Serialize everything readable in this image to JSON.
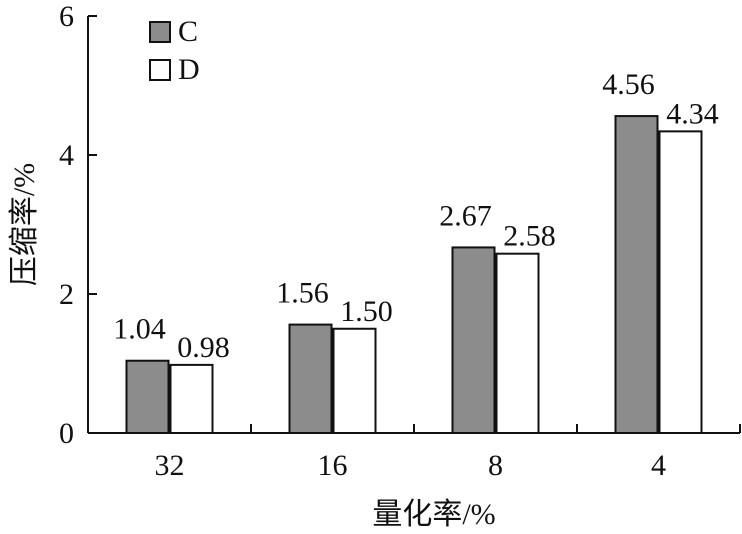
{
  "chart_data": {
    "type": "bar",
    "categories": [
      "32",
      "16",
      "8",
      "4"
    ],
    "series": [
      {
        "name": "C",
        "values": [
          1.04,
          1.56,
          2.67,
          4.56
        ],
        "color": "#8c8c8c"
      },
      {
        "name": "D",
        "values": [
          0.98,
          1.5,
          2.58,
          4.34
        ],
        "color": "#ffffff"
      }
    ],
    "data_labels": [
      [
        "1.04",
        "1.56",
        "2.67",
        "4.56"
      ],
      [
        "0.98",
        "1.50",
        "2.58",
        "4.34"
      ]
    ],
    "xlabel": "量化率/%",
    "ylabel": "压缩率/%",
    "ylim": [
      0,
      6
    ],
    "yticks": [
      "0",
      "2",
      "4",
      "6"
    ],
    "legend_position": "top-left",
    "grid": false
  }
}
